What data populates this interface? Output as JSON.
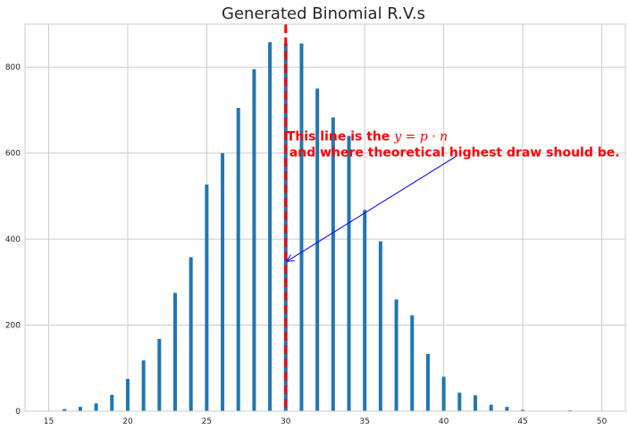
{
  "chart_data": {
    "type": "bar",
    "title": "Generated Binomial R.V.s",
    "xlabel": "",
    "ylabel": "",
    "xlim": [
      13.5,
      51.5
    ],
    "ylim": [
      0,
      900
    ],
    "xticks": [
      15,
      20,
      25,
      30,
      35,
      40,
      45,
      50
    ],
    "yticks": [
      0,
      200,
      400,
      600,
      800
    ],
    "grid": true,
    "series": [
      {
        "x": [
          16,
          17,
          18,
          19,
          20,
          21,
          22,
          23,
          24,
          25,
          26,
          27,
          28,
          29,
          30,
          31,
          32,
          33,
          34,
          35,
          36,
          37,
          38,
          39,
          40,
          41,
          42,
          43,
          44,
          45,
          48
        ],
        "values": [
          5,
          10,
          18,
          38,
          75,
          118,
          168,
          275,
          358,
          527,
          600,
          705,
          795,
          858,
          855,
          855,
          750,
          683,
          640,
          468,
          395,
          260,
          223,
          133,
          80,
          43,
          37,
          15,
          10,
          3,
          2
        ],
        "color": "#1f77b4"
      }
    ],
    "reference_line": {
      "x": 30,
      "color": "#ff0000",
      "style": "dashed"
    },
    "annotation": {
      "text_prefix": "This line is the ",
      "text_math": "y = p · n",
      "text_line2": "and where theoretical highest draw should be.",
      "text_color": "#ff0000",
      "arrow_color": "#0000ff",
      "point_to": [
        30,
        348
      ],
      "text_at": [
        30,
        640
      ]
    }
  }
}
